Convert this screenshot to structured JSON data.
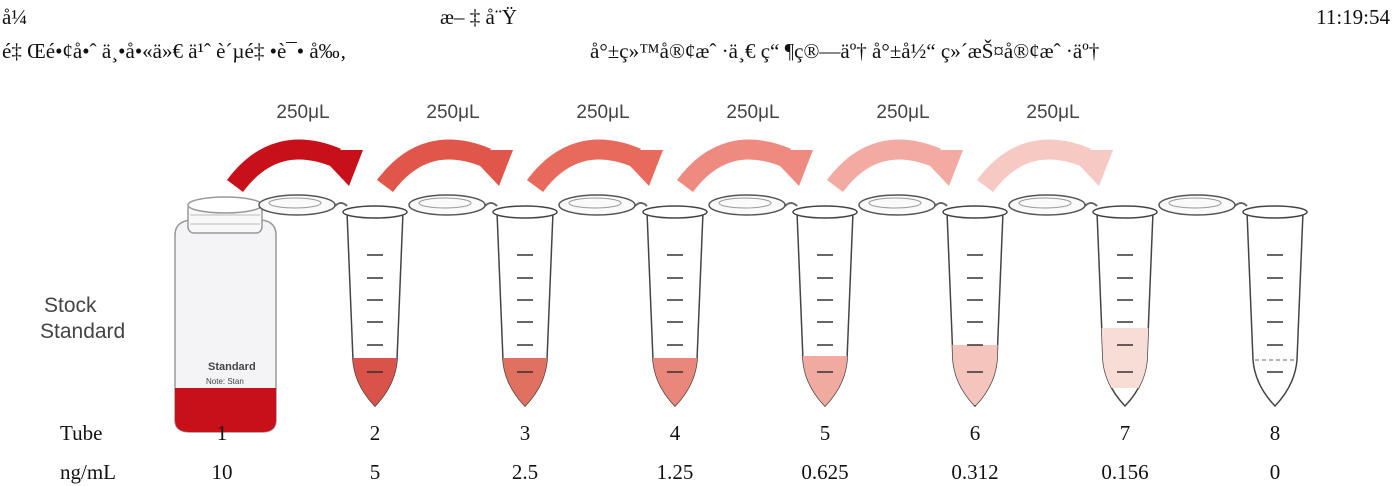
{
  "header": {
    "left": "å¼",
    "center": "æ– ‡ å¨Ÿ",
    "time": "11:19:54",
    "left_message": "é‡ Œé•¢å•ˆ ä¸•å•«ä»€ ä¹ˆ è´µé‡ •è¯• å‰‚",
    "right_message": "å°±ç»™å®¢æˆ ·ä¸€ ç“ ¶ç®—äº†  å°±å½“ ç»´æŠ¤å®¢æˆ ·äº†"
  },
  "transfers": [
    "250μL",
    "250μL",
    "250μL",
    "250μL",
    "250μL",
    "250μL"
  ],
  "stock_label": [
    "Stock",
    "Standard"
  ],
  "bottle_label": [
    "Standard",
    "Note: Stan"
  ],
  "table": {
    "row_labels": [
      "Tube",
      "ng/mL"
    ],
    "tubes": [
      "1",
      "2",
      "3",
      "4",
      "5",
      "6",
      "7",
      "8"
    ],
    "concentrations": [
      "10",
      "5",
      "2.5",
      "1.25",
      "0.625",
      "0.312",
      "0.156",
      "0"
    ]
  }
}
